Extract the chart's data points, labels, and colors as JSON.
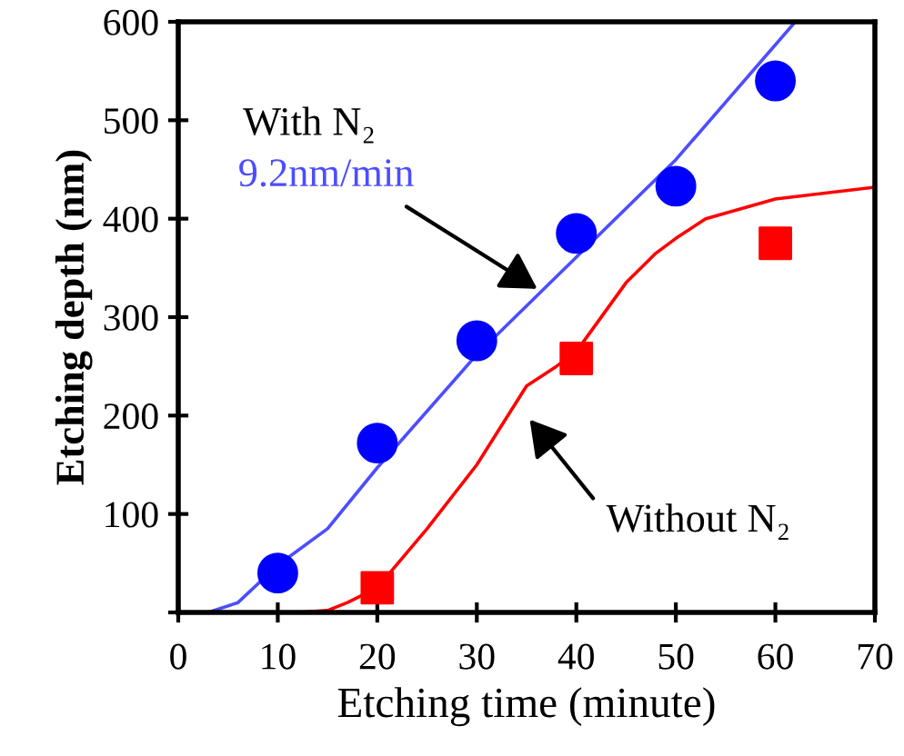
{
  "chart_data": {
    "type": "scatter",
    "xlabel": "Etching time (minute)",
    "ylabel": "Etching depth (nm)",
    "xlim": [
      0,
      70
    ],
    "xticks": [
      0,
      10,
      20,
      30,
      40,
      50,
      60,
      70
    ],
    "ylim": [
      0,
      600
    ],
    "yticks": [
      {
        "value": 0,
        "label": null
      },
      100,
      200,
      300,
      400,
      500,
      600
    ],
    "grid": false,
    "series": [
      {
        "marker": "circle",
        "color": "#0000ff",
        "x": [
          10,
          20,
          30,
          40,
          50,
          60
        ],
        "values": [
          40,
          172,
          276,
          385,
          433,
          540
        ]
      },
      {
        "type": "line",
        "line_style": "solid",
        "color": "#4d4dff",
        "x": [
          0,
          3,
          6,
          10,
          15,
          20,
          30,
          40,
          50,
          62
        ],
        "values": [
          0,
          0,
          10,
          48,
          85,
          147,
          262,
          361,
          460,
          600
        ]
      },
      {
        "marker": "square",
        "color": "#ff0000",
        "x": [
          20,
          40,
          60
        ],
        "values": [
          25,
          258,
          375
        ]
      },
      {
        "type": "line",
        "line_style": "solid",
        "color": "#ff0000",
        "x": [
          0,
          12,
          15,
          17,
          20,
          25,
          30,
          35,
          38,
          40,
          45,
          48,
          50,
          53,
          60,
          70
        ],
        "values": [
          0,
          0,
          2,
          10,
          25,
          85,
          150,
          230,
          250,
          265,
          335,
          365,
          380,
          400,
          420,
          432
        ]
      }
    ],
    "annotations": [
      "With N₂",
      {
        "text": "9.2nm/min",
        "x": 36.5,
        "y": 326
      },
      "Without N₂"
    ]
  }
}
